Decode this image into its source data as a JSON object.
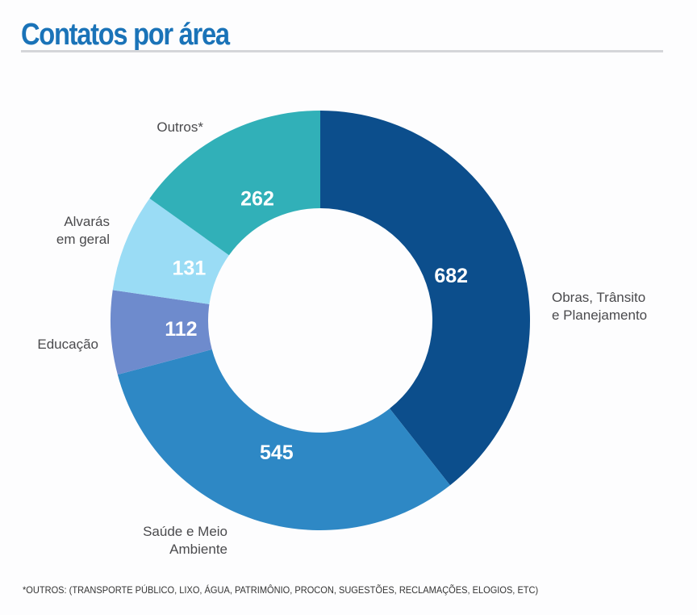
{
  "title": "Contatos por área",
  "footnote": "*OUTROS: (TRANSPORTE PÚBLICO, LIXO, ÁGUA, PATRIMÔNIO, PROCON, SUGESTÕES, RECLAMAÇÕES, ELOGIOS, ETC)",
  "chart_data": {
    "type": "pie",
    "variant": "donut",
    "title": "Contatos por área",
    "start": "12 o'clock, clockwise",
    "slices": [
      {
        "label": "Obras, Trânsito e Planejamento",
        "label_lines": [
          "Obras, Trânsito",
          "e Planejamento"
        ],
        "value": 682,
        "display": "682",
        "color": "#0c4e8c"
      },
      {
        "label": "Saúde e Meio Ambiente",
        "label_lines": [
          "Saúde e Meio",
          "Ambiente"
        ],
        "value": 545,
        "display": "545",
        "color": "#2e88c5"
      },
      {
        "label": "Educação",
        "label_lines": [
          "Educação"
        ],
        "value": 112,
        "display": "112",
        "color": "#6e8bcd"
      },
      {
        "label": "Alvarás em geral",
        "label_lines": [
          "Alvarás",
          "em geral"
        ],
        "value": 131,
        "display": "131",
        "color": "#9adcf5"
      },
      {
        "label": "Outros*",
        "label_lines": [
          "Outros*"
        ],
        "value": 262,
        "display": "262",
        "color": "#31b0b8"
      }
    ]
  }
}
